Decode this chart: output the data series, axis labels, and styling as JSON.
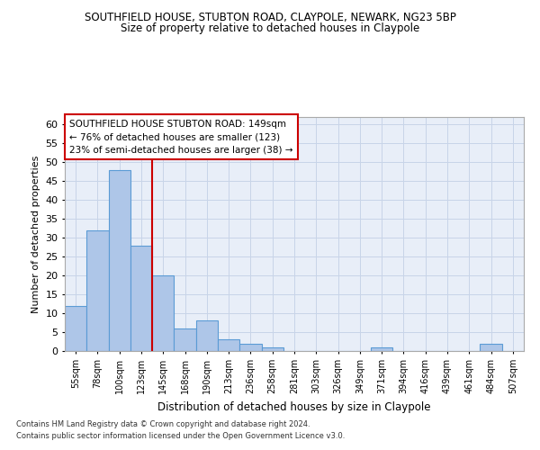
{
  "title1": "SOUTHFIELD HOUSE, STUBTON ROAD, CLAYPOLE, NEWARK, NG23 5BP",
  "title2": "Size of property relative to detached houses in Claypole",
  "xlabel": "Distribution of detached houses by size in Claypole",
  "ylabel": "Number of detached properties",
  "categories": [
    "55sqm",
    "78sqm",
    "100sqm",
    "123sqm",
    "145sqm",
    "168sqm",
    "190sqm",
    "213sqm",
    "236sqm",
    "258sqm",
    "281sqm",
    "303sqm",
    "326sqm",
    "349sqm",
    "371sqm",
    "394sqm",
    "416sqm",
    "439sqm",
    "461sqm",
    "484sqm",
    "507sqm"
  ],
  "values": [
    12,
    32,
    48,
    28,
    20,
    6,
    8,
    3,
    2,
    1,
    0,
    0,
    0,
    0,
    1,
    0,
    0,
    0,
    0,
    2,
    0
  ],
  "bar_color": "#aec6e8",
  "bar_edge_color": "#5b9bd5",
  "highlight_index": 4,
  "highlight_line_color": "#cc0000",
  "ylim": [
    0,
    62
  ],
  "yticks": [
    0,
    5,
    10,
    15,
    20,
    25,
    30,
    35,
    40,
    45,
    50,
    55,
    60
  ],
  "annotation_lines": [
    "SOUTHFIELD HOUSE STUBTON ROAD: 149sqm",
    "← 76% of detached houses are smaller (123)",
    "23% of semi-detached houses are larger (38) →"
  ],
  "footnote1": "Contains HM Land Registry data © Crown copyright and database right 2024.",
  "footnote2": "Contains public sector information licensed under the Open Government Licence v3.0.",
  "background_color": "#ffffff",
  "plot_bg_color": "#e8eef8",
  "grid_color": "#c8d4e8"
}
